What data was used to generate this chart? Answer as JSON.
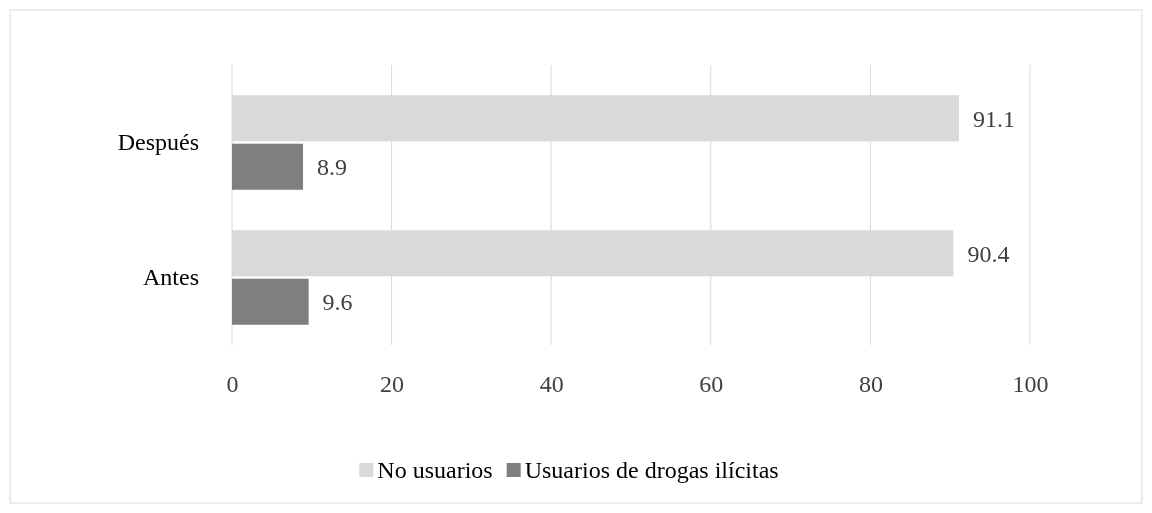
{
  "chart_data": {
    "type": "bar",
    "orientation": "horizontal",
    "categories": [
      "Después",
      "Antes"
    ],
    "series": [
      {
        "name": "No usuarios",
        "color": "#d9d9d9",
        "values": [
          91.1,
          90.4
        ]
      },
      {
        "name": "Usuarios de drogas ilícitas",
        "color": "#7f7f7f",
        "values": [
          8.9,
          9.6
        ]
      }
    ],
    "xlim": [
      0,
      100
    ],
    "xticks": [
      0,
      20,
      40,
      60,
      80,
      100
    ],
    "grid": "x",
    "legend": "bottom",
    "data_labels": true
  }
}
